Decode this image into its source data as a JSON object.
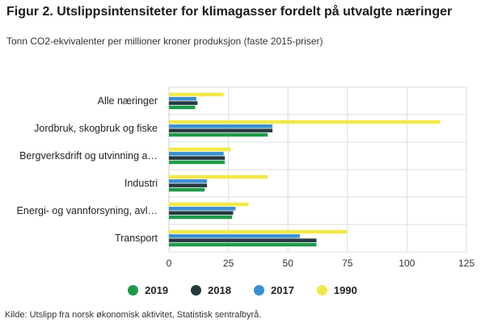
{
  "title": "Figur 2. Utslippsintensiteter for klimagasser fordelt på utvalgte næringer",
  "subtitle": "Tonn CO2-ekvivalenter per millioner kroner produksjon (faste 2015-priser)",
  "source": "Kilde: Utslipp fra norsk økonomisk aktivitet, Statistisk sentralbyrå.",
  "chart_data": {
    "type": "bar",
    "orientation": "horizontal",
    "categories": [
      "Alle næringer",
      "Jordbruk, skogbruk og fiske",
      "Bergverksdrift og utvinning a…",
      "Industri",
      "Energi- og vannforsyning, avl…",
      "Transport"
    ],
    "series": [
      {
        "name": "1990",
        "color": "#f2e84a",
        "values": [
          23,
          114,
          26,
          41.5,
          33.5,
          75
        ]
      },
      {
        "name": "2017",
        "color": "#3a8fd0",
        "values": [
          11.5,
          43.5,
          23,
          16,
          28,
          55
        ]
      },
      {
        "name": "2018",
        "color": "#263a40",
        "values": [
          12,
          43.5,
          23.5,
          16,
          27,
          62
        ]
      },
      {
        "name": "2019",
        "color": "#1f9a4a",
        "values": [
          11,
          41.5,
          23.5,
          15,
          26.5,
          62
        ]
      }
    ],
    "legend_order": [
      "2019",
      "2018",
      "2017",
      "1990"
    ],
    "xlim": [
      0,
      125
    ],
    "xticks": [
      0,
      25,
      50,
      75,
      100,
      125
    ],
    "grid": true,
    "legend_position": "bottom"
  }
}
